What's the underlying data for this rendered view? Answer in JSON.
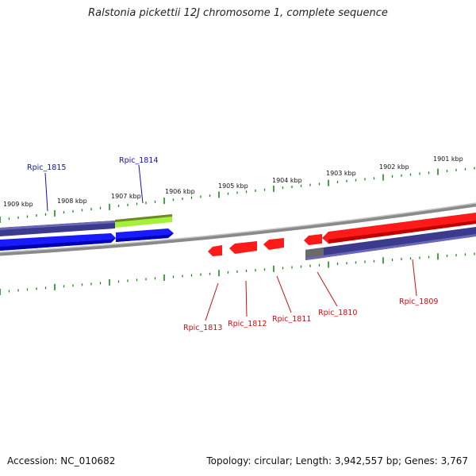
{
  "title": "Ralstonia pickettii 12J chromosome 1, complete sequence",
  "footer": {
    "accession": "Accession: NC_010682",
    "summary": "Topology: circular; Length: 3,942,557 bp; Genes: 3,767"
  },
  "colors": {
    "forward_gene": "#1a1aff",
    "reverse_gene": "#ff1a1a",
    "pseudo_gene_upper": "#a4f03a",
    "backbone": "#8a8a8a",
    "cds_band": "#3c3a8c",
    "tick": "#1a8a1a"
  },
  "kbp_labels": [
    "1909 kbp",
    "1908 kbp",
    "1907 kbp",
    "1906 kbp",
    "1905 kbp",
    "1904 kbp",
    "1903 kbp",
    "1902 kbp",
    "1901 kbp"
  ],
  "genes_forward": [
    "Rpic_1815",
    "Rpic_1814"
  ],
  "genes_reverse": [
    "Rpic_1813",
    "Rpic_1812",
    "Rpic_1811",
    "Rpic_1810",
    "Rpic_1809"
  ]
}
